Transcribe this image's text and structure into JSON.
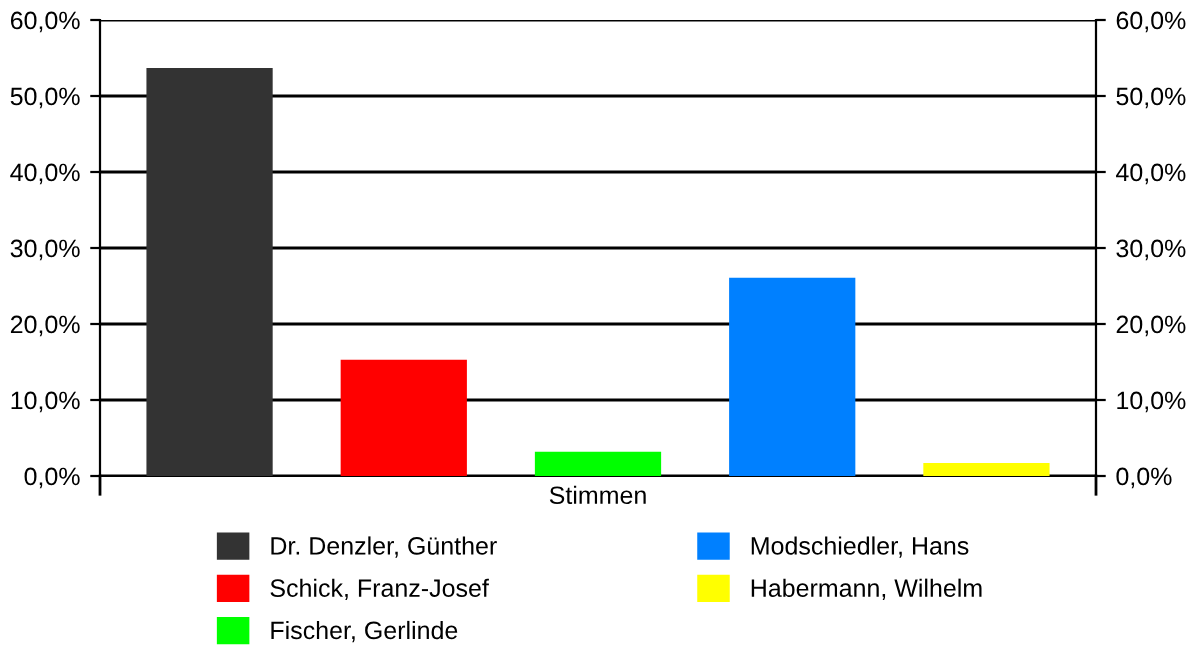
{
  "chart_data": {
    "type": "bar",
    "categories": [
      "Stimmen"
    ],
    "series": [
      {
        "name": "Dr. Denzler, Günther",
        "color": "#333333",
        "values": [
          53.7
        ]
      },
      {
        "name": "Schick, Franz-Josef",
        "color": "#ff0000",
        "values": [
          15.3
        ]
      },
      {
        "name": "Fischer, Gerlinde",
        "color": "#00ff00",
        "values": [
          3.2
        ]
      },
      {
        "name": "Modschiedler, Hans",
        "color": "#0080ff",
        "values": [
          26.1
        ]
      },
      {
        "name": "Habermann, Wilhelm",
        "color": "#ffff00",
        "values": [
          1.7
        ]
      }
    ],
    "ylim": [
      0,
      60
    ],
    "yticks": [
      {
        "value": 0,
        "label": "0,0%"
      },
      {
        "value": 10,
        "label": "10,0%"
      },
      {
        "value": 20,
        "label": "20,0%"
      },
      {
        "value": 30,
        "label": "30,0%"
      },
      {
        "value": 40,
        "label": "40,0%"
      },
      {
        "value": 50,
        "label": "50,0%"
      },
      {
        "value": 60,
        "label": "60,0%"
      }
    ],
    "grid": "y",
    "legend": "bottom"
  }
}
